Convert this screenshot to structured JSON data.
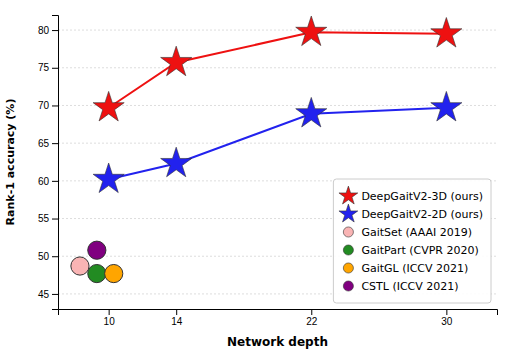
{
  "chart_data": {
    "type": "line",
    "xlabel": "Network depth",
    "ylabel": "Rank-1 accuracy (%)",
    "xlim": [
      7,
      33
    ],
    "ylim": [
      43,
      82
    ],
    "xticks": [
      10,
      14,
      22,
      30
    ],
    "yticks": [
      45,
      50,
      55,
      60,
      65,
      70,
      75,
      80
    ],
    "grid": "y",
    "legend": "lower right",
    "series": [
      {
        "name": "DeepGaitV2-3D (ours)",
        "type": "line",
        "marker": "star",
        "color": "#ee1111",
        "x": [
          10,
          14,
          22,
          30
        ],
        "values": [
          69.7,
          75.7,
          79.7,
          79.5
        ]
      },
      {
        "name": "DeepGaitV2-2D (ours)",
        "type": "line",
        "marker": "star",
        "color": "#2222ee",
        "x": [
          10,
          14,
          22,
          30
        ],
        "values": [
          60.2,
          62.3,
          68.9,
          69.7
        ]
      },
      {
        "name": "GaitSet (AAAI 2019)",
        "type": "scatter",
        "marker": "circle",
        "color": "#f9b4b4",
        "x": [
          8.3
        ],
        "values": [
          48.7
        ]
      },
      {
        "name": "GaitPart (CVPR 2020)",
        "type": "scatter",
        "marker": "circle",
        "color": "#228B22",
        "x": [
          9.3
        ],
        "values": [
          47.7
        ]
      },
      {
        "name": "GaitGL (ICCV 2021)",
        "type": "scatter",
        "marker": "circle",
        "color": "#FFA500",
        "x": [
          10.3
        ],
        "values": [
          47.7
        ]
      },
      {
        "name": "CSTL (ICCV 2021)",
        "type": "scatter",
        "marker": "circle",
        "color": "#800080",
        "x": [
          9.3
        ],
        "values": [
          50.8
        ]
      }
    ]
  }
}
